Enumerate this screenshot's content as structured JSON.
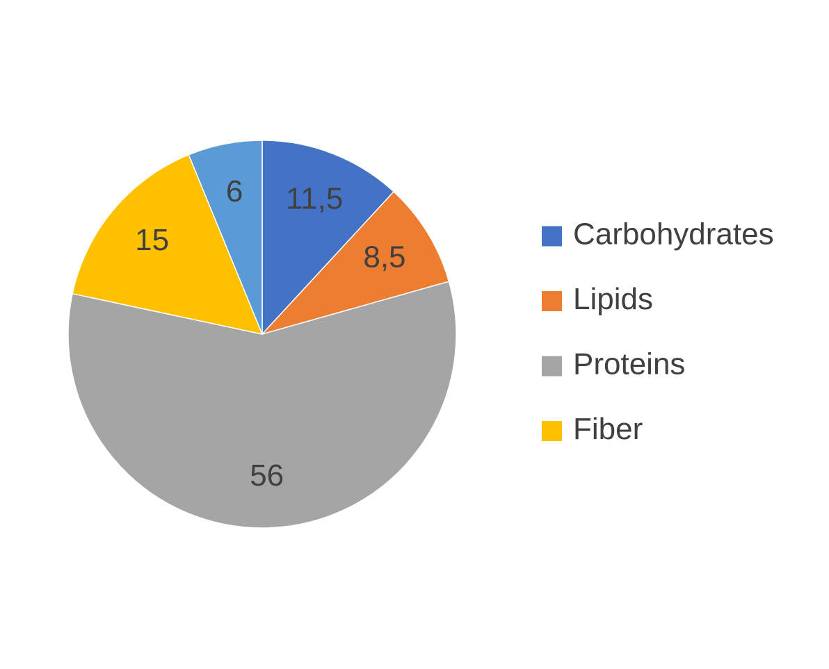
{
  "chart_data": {
    "type": "pie",
    "categories": [
      "Carbohydrates",
      "Lipids",
      "Proteins",
      "Fiber",
      null
    ],
    "values": [
      11.5,
      8.5,
      56,
      15,
      6
    ],
    "value_labels": [
      "11,5",
      "8,5",
      "56",
      "15",
      "6"
    ],
    "colors": [
      "#4472c4",
      "#ed7d31",
      "#a5a5a5",
      "#ffc000",
      "#5b9bd5"
    ],
    "legend": "right"
  }
}
